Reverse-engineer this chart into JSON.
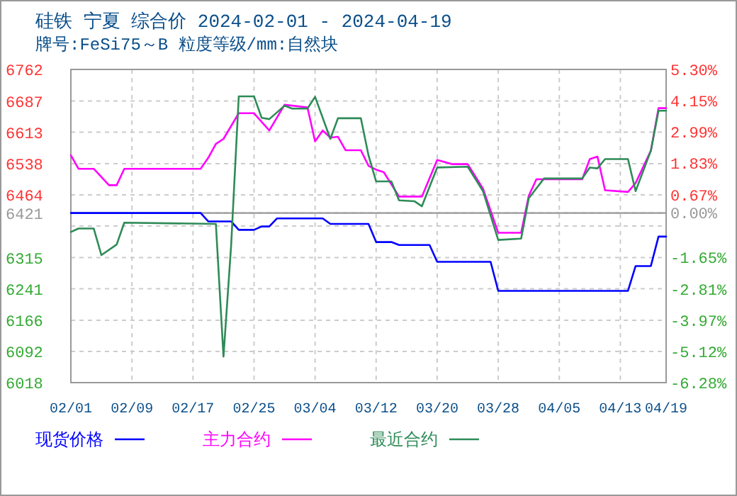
{
  "chart_data": {
    "type": "line",
    "title": "硅铁 宁夏 综合价 2024-02-01 - 2024-04-19",
    "subtitle": "牌号:FeSi75～B 粒度等级/mm:自然块",
    "xlim": [
      "2024-02-01",
      "2024-04-19"
    ],
    "xticks": [
      {
        "value": "2024-02-01",
        "label": "02/01"
      },
      {
        "value": "2024-02-09",
        "label": "02/09"
      },
      {
        "value": "2024-02-17",
        "label": "02/17"
      },
      {
        "value": "2024-02-25",
        "label": "02/25"
      },
      {
        "value": "2024-03-04",
        "label": "03/04"
      },
      {
        "value": "2024-03-12",
        "label": "03/12"
      },
      {
        "value": "2024-03-20",
        "label": "03/20"
      },
      {
        "value": "2024-03-28",
        "label": "03/28"
      },
      {
        "value": "2024-04-05",
        "label": "04/05"
      },
      {
        "value": "2024-04-13",
        "label": "04/13"
      },
      {
        "value": "2024-04-19",
        "label": "04/19"
      }
    ],
    "ylim": [
      6018,
      6762
    ],
    "yticks": [
      6018,
      6092,
      6166,
      6241,
      6315,
      {
        "value": 6390,
        "label": null
      },
      6421,
      6464,
      6538,
      6613,
      6687,
      6762
    ],
    "y2lim": [
      -6.28,
      5.3
    ],
    "y2ticks": [
      {
        "value": -6.28,
        "label": "-6.28%"
      },
      {
        "value": -5.12,
        "label": "-5.12%"
      },
      {
        "value": -3.97,
        "label": "-3.97%"
      },
      {
        "value": -2.81,
        "label": "-2.81%"
      },
      {
        "value": -1.65,
        "label": "-1.65%"
      },
      {
        "value": 0,
        "label": "0.00%"
      },
      {
        "value": 0.67,
        "label": "0.67%"
      },
      {
        "value": 1.83,
        "label": "1.83%"
      },
      {
        "value": 2.99,
        "label": "2.99%"
      },
      {
        "value": 4.15,
        "label": "4.15%"
      },
      {
        "value": 5.3,
        "label": "5.30%"
      }
    ],
    "grid": true,
    "legend": "bottom",
    "marker": "none",
    "line_style": "solid",
    "ref_lines": [
      {
        "axis": "y",
        "value": 6421,
        "color": "#999999"
      }
    ],
    "series": [
      {
        "name": "现货价格",
        "color": "#0000ff",
        "x": [
          "2024-02-01",
          "2024-02-18",
          "2024-02-19",
          "2024-02-22",
          "2024-02-23",
          "2024-02-25",
          "2024-02-26",
          "2024-02-27",
          "2024-02-28",
          "2024-03-05",
          "2024-03-06",
          "2024-03-11",
          "2024-03-12",
          "2024-03-14",
          "2024-03-15",
          "2024-03-19",
          "2024-03-20",
          "2024-03-27",
          "2024-03-28",
          "2024-04-14",
          "2024-04-15",
          "2024-04-17",
          "2024-04-18",
          "2024-04-19"
        ],
        "values": [
          6421,
          6421,
          6401,
          6401,
          6381,
          6381,
          6389,
          6389,
          6408,
          6408,
          6395,
          6395,
          6352,
          6352,
          6345,
          6345,
          6305,
          6305,
          6236,
          6236,
          6295,
          6295,
          6365,
          6365
        ]
      },
      {
        "name": "主力合约",
        "color": "#ff00ff",
        "x": [
          "2024-02-01",
          "2024-02-02",
          "2024-02-04",
          "2024-02-06",
          "2024-02-07",
          "2024-02-08",
          "2024-02-18",
          "2024-02-19",
          "2024-02-20",
          "2024-02-21",
          "2024-02-23",
          "2024-02-25",
          "2024-02-27",
          "2024-02-29",
          "2024-03-03",
          "2024-03-04",
          "2024-03-05",
          "2024-03-06",
          "2024-03-07",
          "2024-03-08",
          "2024-03-10",
          "2024-03-11",
          "2024-03-12",
          "2024-03-13",
          "2024-03-15",
          "2024-03-18",
          "2024-03-20",
          "2024-03-22",
          "2024-03-24",
          "2024-03-26",
          "2024-03-28",
          "2024-03-31",
          "2024-04-01",
          "2024-04-02",
          "2024-04-08",
          "2024-04-09",
          "2024-04-10",
          "2024-04-11",
          "2024-04-14",
          "2024-04-15",
          "2024-04-17",
          "2024-04-18",
          "2024-04-19"
        ],
        "values": [
          6558,
          6526,
          6526,
          6487,
          6487,
          6526,
          6526,
          6552,
          6585,
          6597,
          6658,
          6658,
          6617,
          6678,
          6672,
          6591,
          6617,
          6600,
          6602,
          6570,
          6570,
          6533,
          6524,
          6518,
          6460,
          6460,
          6547,
          6537,
          6537,
          6479,
          6374,
          6374,
          6462,
          6501,
          6501,
          6549,
          6555,
          6475,
          6471,
          6492,
          6569,
          6670,
          6670
        ]
      },
      {
        "name": "最近合约",
        "color": "#2e8b57",
        "x": [
          "2024-02-01",
          "2024-02-02",
          "2024-02-04",
          "2024-02-05",
          "2024-02-07",
          "2024-02-08",
          "2024-02-20",
          "2024-02-21",
          "2024-02-22",
          "2024-02-23",
          "2024-02-25",
          "2024-02-26",
          "2024-02-27",
          "2024-02-29",
          "2024-03-01",
          "2024-03-03",
          "2024-03-04",
          "2024-03-06",
          "2024-03-07",
          "2024-03-10",
          "2024-03-11",
          "2024-03-12",
          "2024-03-14",
          "2024-03-15",
          "2024-03-17",
          "2024-03-18",
          "2024-03-20",
          "2024-03-24",
          "2024-03-26",
          "2024-03-28",
          "2024-03-31",
          "2024-04-01",
          "2024-04-03",
          "2024-04-08",
          "2024-04-09",
          "2024-04-10",
          "2024-04-11",
          "2024-04-14",
          "2024-04-15",
          "2024-04-17",
          "2024-04-18",
          "2024-04-19"
        ],
        "values": [
          6376,
          6384,
          6384,
          6321,
          6346,
          6398,
          6395,
          6080,
          6344,
          6698,
          6698,
          6647,
          6644,
          6676,
          6669,
          6669,
          6697,
          6597,
          6646,
          6646,
          6558,
          6496,
          6496,
          6451,
          6449,
          6437,
          6529,
          6531,
          6473,
          6357,
          6360,
          6456,
          6503,
          6503,
          6529,
          6527,
          6549,
          6549,
          6473,
          6569,
          6664,
          6664
        ]
      }
    ]
  }
}
